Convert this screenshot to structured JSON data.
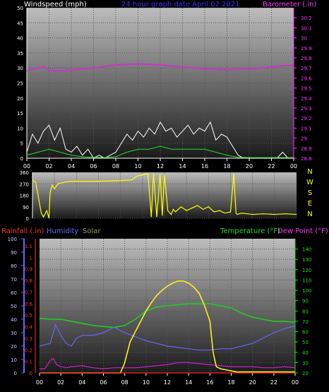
{
  "header": {
    "left_label": "Windspeed (mph)",
    "center_label": "24 hour graph date   April 02 2021",
    "right_label": "Barometer (.in)"
  },
  "colors": {
    "windspeed": "#ffffff",
    "gust": "#ffffff",
    "avg_wind": "#22dd22",
    "barometer": "#cc33cc",
    "direction": "#ffff00",
    "rain": "#ff2222",
    "humidity": "#6666ff",
    "solar": "#ffee22",
    "temperature": "#22cc22",
    "dewpoint": "#cc22cc",
    "header_center": "#3333ff",
    "right_axis_baro": "#ff33ff",
    "right_axis_temp": "#22dd22",
    "left_axis_rain": "#ff3333",
    "left_axis_hum": "#6666ff"
  },
  "bottom_legend": {
    "rainfall": "Rainfall (.in)",
    "humidity": "Humidity",
    "solar": "Solar",
    "temperature": "Temperature (°F)",
    "dewpoint": "Dew Point (°F)"
  },
  "compass_labels": [
    "N",
    "W",
    "S",
    "E",
    "N"
  ],
  "chart_data": [
    {
      "type": "line",
      "name": "wind_barometer",
      "x_ticks": [
        "00",
        "02",
        "04",
        "06",
        "08",
        "10",
        "12",
        "14",
        "16",
        "18",
        "20",
        "22",
        "00"
      ],
      "x_range_hours": [
        0,
        24
      ],
      "left_axis": {
        "label": "Windspeed (mph)",
        "ylim": [
          0,
          50
        ],
        "ticks": [
          "0",
          "5",
          "10",
          "15",
          "20",
          "25",
          "30",
          "35",
          "40",
          "45",
          "50"
        ]
      },
      "right_axis": {
        "label": "Barometer (.in)",
        "ylim": [
          28.8,
          30.3
        ],
        "ticks": [
          "28.8",
          "28.9",
          "29",
          "29.1",
          "29.2",
          "29.3",
          "29.4",
          "29.5",
          "29.6",
          "29.7",
          "29.8",
          "29.9",
          "30",
          "30.1",
          "30.2"
        ]
      },
      "series": [
        {
          "name": "Barometer",
          "axis": "right",
          "x": [
            0,
            1,
            1.5,
            2,
            3,
            4,
            6,
            8,
            10,
            12,
            14,
            16,
            18,
            20,
            22,
            24
          ],
          "values": [
            29.67,
            29.7,
            29.71,
            29.68,
            29.67,
            29.68,
            29.7,
            29.73,
            29.74,
            29.73,
            29.71,
            29.69,
            29.68,
            29.69,
            29.71,
            29.73
          ]
        },
        {
          "name": "Windspeed",
          "axis": "left",
          "x": [
            0,
            0.5,
            1,
            1.5,
            2,
            2.5,
            3,
            3.5,
            4,
            4.5,
            5,
            5.5,
            6,
            6.5,
            7,
            7.5,
            8,
            8.5,
            9,
            9.5,
            10,
            10.5,
            11,
            11.5,
            12,
            12.5,
            13,
            13.5,
            14,
            14.5,
            15,
            15.5,
            16,
            16.5,
            17,
            17.5,
            18,
            18.5,
            19,
            19.5,
            20,
            20.5,
            21,
            21.5,
            22,
            22.5,
            23,
            23.5,
            24
          ],
          "values": [
            2,
            8,
            5,
            9,
            11,
            6,
            10,
            3,
            2,
            4,
            1,
            3,
            0,
            1,
            0,
            1,
            2,
            5,
            8,
            6,
            9,
            7,
            10,
            8,
            12,
            9,
            10,
            7,
            9,
            11,
            8,
            10,
            9,
            12,
            6,
            8,
            7,
            4,
            1,
            0,
            0,
            0,
            0,
            0,
            0,
            0,
            2,
            0,
            0
          ]
        },
        {
          "name": "Average wind",
          "axis": "left",
          "x": [
            0,
            1,
            2,
            3,
            4,
            5,
            6,
            7,
            8,
            9,
            10,
            11,
            12,
            13,
            14,
            15,
            16,
            17,
            18,
            19,
            20,
            21,
            22,
            23,
            24
          ],
          "values": [
            1,
            2,
            3,
            2,
            1,
            0.5,
            0.3,
            0.2,
            0.5,
            2,
            3,
            3,
            4,
            3,
            3,
            3,
            3,
            2,
            1,
            0.3,
            0.2,
            0.2,
            0.2,
            0.2,
            0.2
          ]
        }
      ]
    },
    {
      "type": "line",
      "name": "wind_direction",
      "x_range_hours": [
        0,
        24
      ],
      "ylim": [
        0,
        360
      ],
      "ticks": [
        "0",
        "90",
        "180",
        "270",
        "360"
      ],
      "series": [
        {
          "name": "Direction",
          "x": [
            0,
            0.3,
            0.8,
            1.0,
            1.3,
            1.5,
            1.6,
            1.8,
            2.0,
            2.3,
            2.8,
            3.5,
            4.5,
            6,
            8,
            9,
            9.5,
            10,
            10.5,
            10.8,
            11,
            11.3,
            11.6,
            11.8,
            12,
            12.3,
            12.6,
            12.8,
            13,
            13.5,
            14,
            14.5,
            15,
            15.5,
            16,
            16.5,
            17,
            17.5,
            18,
            18.3,
            18.5,
            18.6,
            18.8,
            19,
            20,
            21,
            22,
            23,
            24
          ],
          "values": [
            300,
            280,
            40,
            10,
            60,
            0,
            200,
            260,
            230,
            270,
            280,
            290,
            290,
            290,
            295,
            300,
            330,
            340,
            350,
            10,
            350,
            10,
            350,
            20,
            340,
            60,
            30,
            70,
            50,
            90,
            60,
            80,
            100,
            70,
            90,
            50,
            60,
            40,
            50,
            350,
            40,
            30,
            35,
            40,
            30,
            35,
            30,
            35,
            30
          ]
        }
      ]
    },
    {
      "type": "line",
      "name": "temp_humidity_solar_rain",
      "x_ticks": [
        "00",
        "02",
        "04",
        "06",
        "08",
        "10",
        "12",
        "14",
        "16",
        "18",
        "20",
        "22",
        "00"
      ],
      "x_range_hours": [
        0,
        24
      ],
      "left_axis_rain": {
        "label": "Rainfall (.in)",
        "ylim": [
          0,
          1.1
        ],
        "ticks": [
          "0",
          "0.1",
          "0.2",
          "0.3",
          "0.4",
          "0.5",
          "0.6",
          "0.7",
          "0.8",
          "0.9",
          "1",
          "1.1"
        ]
      },
      "left_axis_humidity": {
        "label": "Humidity",
        "ylim": [
          0,
          100
        ],
        "ticks": [
          "0",
          "10",
          "20",
          "30",
          "40",
          "50",
          "60",
          "70",
          "80",
          "90",
          "100"
        ]
      },
      "right_axis": {
        "label": "Temperature (°F)",
        "ylim": [
          20,
          150
        ],
        "ticks": [
          "20",
          "30",
          "40",
          "50",
          "60",
          "70",
          "80",
          "90",
          "100",
          "110",
          "120",
          "130",
          "140"
        ]
      },
      "series": [
        {
          "name": "Temperature",
          "axis": "right",
          "x": [
            0,
            1,
            2,
            3,
            4,
            5,
            6,
            7,
            8,
            9,
            10,
            11,
            12,
            13,
            14,
            15,
            16,
            17,
            18,
            19,
            20,
            21,
            22,
            23,
            24
          ],
          "values": [
            73,
            72,
            72,
            70,
            68,
            66,
            65,
            64,
            66,
            72,
            80,
            84,
            85,
            86,
            87,
            87,
            87,
            85,
            83,
            78,
            74,
            72,
            70,
            70,
            69
          ]
        },
        {
          "name": "Humidity",
          "axis": "humidity",
          "x": [
            0,
            0.5,
            1,
            1.5,
            2,
            2.5,
            3,
            3.5,
            4,
            5,
            6,
            7,
            8,
            9,
            10,
            11,
            12,
            13,
            14,
            15,
            16,
            17,
            18,
            19,
            20,
            21,
            22,
            23,
            24
          ],
          "values": [
            20,
            21,
            22,
            36,
            28,
            22,
            20,
            26,
            28,
            28,
            30,
            34,
            30,
            27,
            24,
            22,
            20,
            19,
            18,
            17,
            17,
            18,
            18,
            20,
            22,
            26,
            30,
            33,
            35
          ]
        },
        {
          "name": "Dew Point",
          "axis": "right",
          "x": [
            0,
            0.5,
            1,
            1.3,
            1.6,
            2,
            2.5,
            3,
            4,
            5,
            6,
            7,
            8,
            9,
            10,
            11,
            12,
            13,
            14,
            15,
            16,
            17,
            18,
            19,
            20,
            21,
            22,
            23,
            24
          ],
          "values": [
            24,
            24,
            32,
            34,
            28,
            26,
            25,
            26,
            27,
            25,
            24,
            25,
            25,
            25,
            26,
            27,
            28,
            30,
            30,
            29,
            28,
            27,
            26,
            26,
            26,
            25,
            25,
            26,
            25
          ]
        },
        {
          "name": "Solar",
          "axis": "right",
          "x": [
            0,
            7.6,
            8,
            8.5,
            9,
            9.5,
            10,
            10.5,
            11,
            11.5,
            12,
            12.5,
            13,
            13.5,
            14,
            14.5,
            15,
            15.5,
            16,
            16.3,
            16.6,
            17,
            17.5,
            18,
            18.5,
            24
          ],
          "values": [
            20,
            20,
            30,
            50,
            60,
            70,
            80,
            88,
            95,
            100,
            104,
            107,
            109,
            109,
            107,
            103,
            97,
            85,
            70,
            40,
            26,
            24,
            23,
            22,
            21,
            21
          ]
        },
        {
          "name": "Rain",
          "axis": "rain",
          "x": [
            0,
            24
          ],
          "values": [
            0,
            0
          ]
        }
      ]
    }
  ]
}
